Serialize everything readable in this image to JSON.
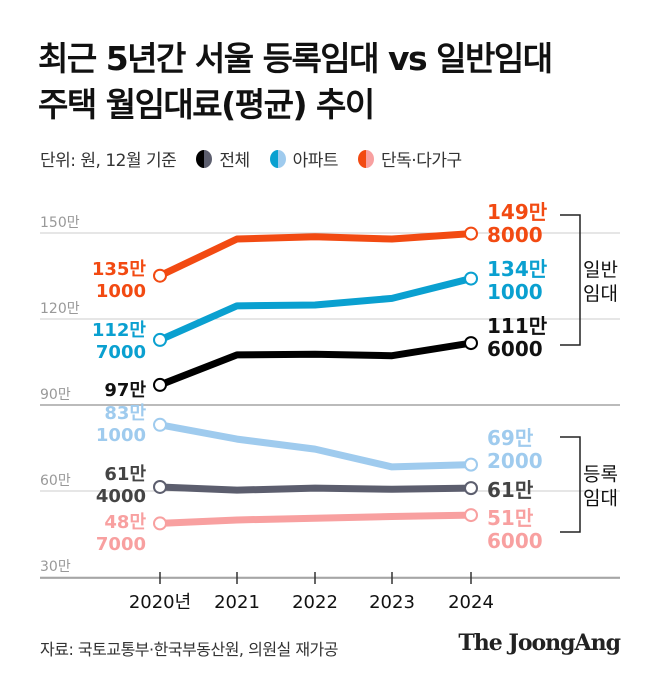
{
  "title_lines": [
    "최근 5년간 서울 등록임대 vs 일반임대",
    "주택 월임대료(평균) 추이"
  ],
  "unit_note": "단위: 원, 12월 기준",
  "legend": [
    {
      "label": "전체",
      "colors": [
        "#000000",
        "#5c5e6e"
      ]
    },
    {
      "label": "아파트",
      "colors": [
        "#0aa0d0",
        "#9fcbee"
      ]
    },
    {
      "label": "단독·다가구",
      "colors": [
        "#f24a12",
        "#f8a0a0"
      ]
    }
  ],
  "source": "자료: 국토교통부·한국부동산원, 의원실 재가공",
  "logo": "The JoongAng",
  "chart_data": {
    "type": "line",
    "categories": [
      "2020년",
      "2021",
      "2022",
      "2023",
      "2024"
    ],
    "yticks": [
      30,
      60,
      90,
      120,
      150
    ],
    "ytick_labels": [
      "30만",
      "60만",
      "90만",
      "120만",
      "150만"
    ],
    "ylim": [
      30,
      150
    ],
    "yunit": "만원",
    "grid": true,
    "groups": [
      {
        "label": [
          "일반",
          "임대"
        ],
        "series_idx": [
          0,
          1,
          2
        ]
      },
      {
        "label": [
          "등록",
          "임대"
        ],
        "series_idx": [
          3,
          4,
          5
        ]
      }
    ],
    "series": [
      {
        "group": "일반임대",
        "type": "단독·다가구",
        "color": "#f24a12",
        "values": [
          135.1,
          147.9,
          148.7,
          147.9,
          149.8
        ],
        "start_label": [
          "135만",
          "1000"
        ],
        "end_label": [
          "149만",
          "8000"
        ]
      },
      {
        "group": "일반임대",
        "type": "아파트",
        "color": "#0aa0d0",
        "values": [
          112.7,
          124.6,
          124.9,
          127.2,
          134.1
        ],
        "start_label": [
          "112만",
          "7000"
        ],
        "end_label": [
          "134만",
          "1000"
        ]
      },
      {
        "group": "일반임대",
        "type": "전체",
        "color": "#000000",
        "values": [
          97,
          107.5,
          107.7,
          107.2,
          111.6
        ],
        "start_label": [
          "97만"
        ],
        "end_label": [
          "111만",
          "6000"
        ]
      },
      {
        "group": "등록임대",
        "type": "아파트",
        "color": "#9fcbee",
        "values": [
          83.1,
          78.1,
          74.6,
          68.4,
          69.2
        ],
        "start_label": [
          "83만",
          "1000"
        ],
        "end_label": [
          "69만",
          "2000"
        ]
      },
      {
        "group": "등록임대",
        "type": "전체",
        "color": "#5c5e6e",
        "values": [
          61.4,
          60.3,
          61.0,
          60.6,
          61.0
        ],
        "start_label": [
          "61만",
          "4000"
        ],
        "end_label": [
          "61만"
        ]
      },
      {
        "group": "등록임대",
        "type": "단독·다가구",
        "color": "#f8a0a0",
        "values": [
          48.7,
          49.9,
          50.5,
          51.1,
          51.6
        ],
        "start_label": [
          "48만",
          "7000"
        ],
        "end_label": [
          "51만",
          "6000"
        ]
      }
    ]
  }
}
